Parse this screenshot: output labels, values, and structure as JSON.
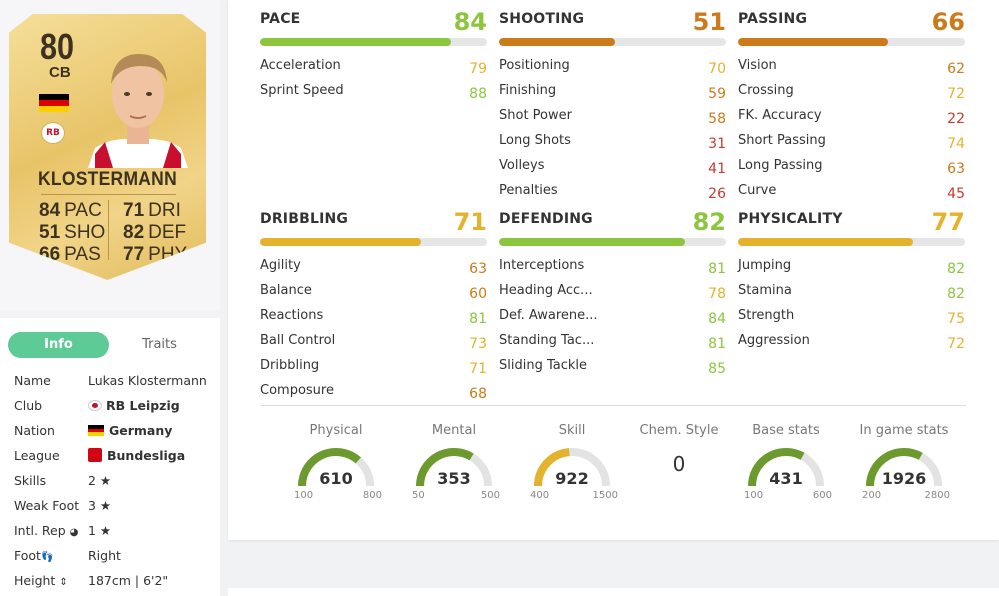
{
  "card": {
    "rating": "80",
    "position": "CB",
    "name": "KLOSTERMANN",
    "flag_colors": [
      "#000000",
      "#dd0000",
      "#ffce00"
    ],
    "club_badge": "RB",
    "stats": [
      {
        "value": "84",
        "label": "PAC"
      },
      {
        "value": "51",
        "label": "SHO"
      },
      {
        "value": "66",
        "label": "PAS"
      },
      {
        "value": "71",
        "label": "DRI"
      },
      {
        "value": "82",
        "label": "DEF"
      },
      {
        "value": "77",
        "label": "PHY"
      }
    ]
  },
  "tabs": {
    "info": "Info",
    "traits": "Traits"
  },
  "info": {
    "name_label": "Name",
    "name_value": "Lukas Klostermann",
    "club_label": "Club",
    "club_value": "RB Leipzig",
    "nation_label": "Nation",
    "nation_value": "Germany",
    "league_label": "League",
    "league_value": "Bundesliga",
    "skills_label": "Skills",
    "skills_value": "2 ★",
    "weakfoot_label": "Weak Foot",
    "weakfoot_value": "3 ★",
    "intlrep_label": "Intl. Rep",
    "intlrep_value": "1 ★",
    "foot_label": "Foot",
    "foot_value": "Right",
    "height_label": "Height",
    "height_value": "187cm | 6'2\""
  },
  "groups": [
    {
      "title": "PACE",
      "total": 84,
      "color": "#8cc63f",
      "attrs": [
        {
          "name": "Acceleration",
          "value": 79
        },
        {
          "name": "Sprint Speed",
          "value": 88
        }
      ]
    },
    {
      "title": "SHOOTING",
      "total": 51,
      "color": "#cc7a1a",
      "attrs": [
        {
          "name": "Positioning",
          "value": 70
        },
        {
          "name": "Finishing",
          "value": 59
        },
        {
          "name": "Shot Power",
          "value": 58
        },
        {
          "name": "Long Shots",
          "value": 31
        },
        {
          "name": "Volleys",
          "value": 41
        },
        {
          "name": "Penalties",
          "value": 26
        }
      ]
    },
    {
      "title": "PASSING",
      "total": 66,
      "color": "#cc7a1a",
      "attrs": [
        {
          "name": "Vision",
          "value": 62
        },
        {
          "name": "Crossing",
          "value": 72
        },
        {
          "name": "FK. Accuracy",
          "value": 22
        },
        {
          "name": "Short Passing",
          "value": 74
        },
        {
          "name": "Long Passing",
          "value": 63
        },
        {
          "name": "Curve",
          "value": 45
        }
      ]
    },
    {
      "title": "DRIBBLING",
      "total": 71,
      "color": "#e5b22e",
      "attrs": [
        {
          "name": "Agility",
          "value": 63
        },
        {
          "name": "Balance",
          "value": 60
        },
        {
          "name": "Reactions",
          "value": 81
        },
        {
          "name": "Ball Control",
          "value": 73
        },
        {
          "name": "Dribbling",
          "value": 71
        },
        {
          "name": "Composure",
          "value": 68
        }
      ]
    },
    {
      "title": "DEFENDING",
      "total": 82,
      "color": "#8cc63f",
      "attrs": [
        {
          "name": "Interceptions",
          "value": 81
        },
        {
          "name": "Heading Acc...",
          "value": 78
        },
        {
          "name": "Def. Awarene...",
          "value": 84
        },
        {
          "name": "Standing Tac...",
          "value": 81
        },
        {
          "name": "Sliding Tackle",
          "value": 85
        }
      ]
    },
    {
      "title": "PHYSICALITY",
      "total": 77,
      "color": "#e5b22e",
      "attrs": [
        {
          "name": "Jumping",
          "value": 82
        },
        {
          "name": "Stamina",
          "value": 82
        },
        {
          "name": "Strength",
          "value": 75
        },
        {
          "name": "Aggression",
          "value": 72
        }
      ]
    }
  ],
  "gauges": [
    {
      "label": "Physical",
      "value": 610,
      "min": 100,
      "max": 800,
      "color": "#6d9a2e"
    },
    {
      "label": "Mental",
      "value": 353,
      "min": 50,
      "max": 500,
      "color": "#6d9a2e"
    },
    {
      "label": "Skill",
      "value": 922,
      "min": 400,
      "max": 1500,
      "color": "#e5b22e"
    },
    {
      "label": "Base stats",
      "value": 431,
      "min": 100,
      "max": 600,
      "color": "#6d9a2e"
    },
    {
      "label": "In game stats",
      "value": 1926,
      "min": 200,
      "max": 2800,
      "color": "#6d9a2e"
    }
  ],
  "chem": {
    "label": "Chem. Style",
    "value": "0"
  }
}
